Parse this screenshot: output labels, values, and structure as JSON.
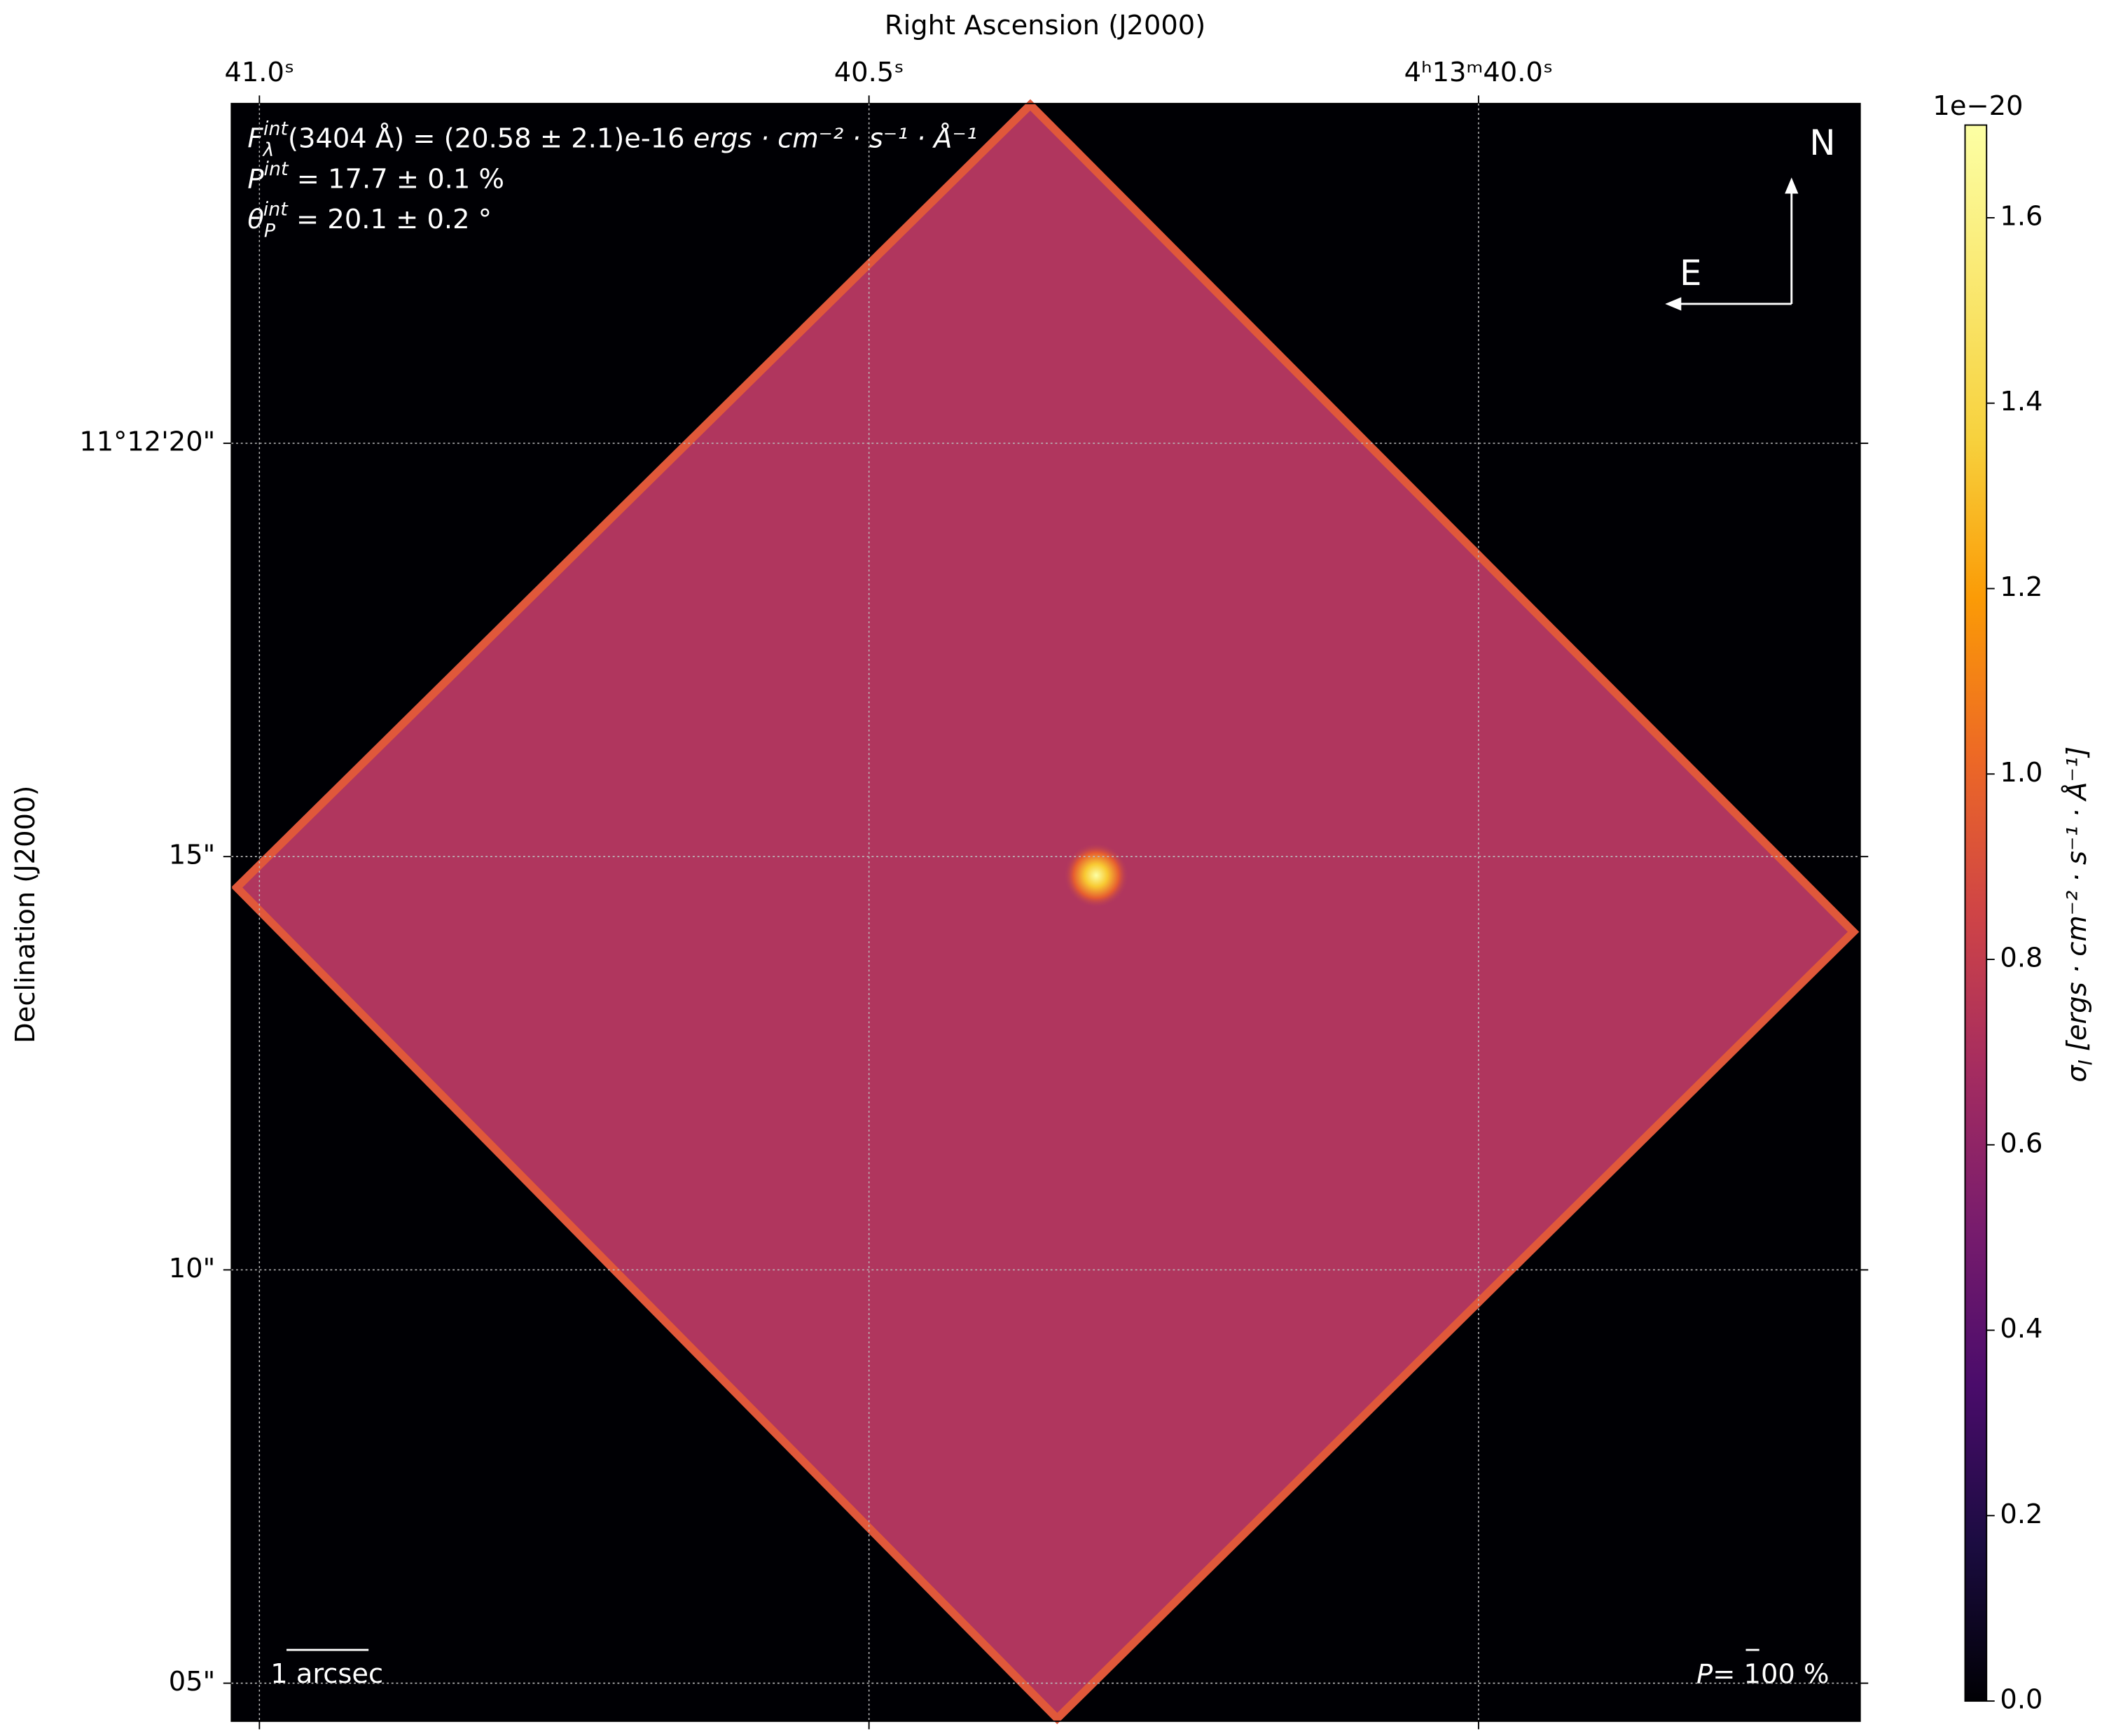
{
  "chart_data": {
    "type": "image",
    "title": "Right Ascension (J2000)",
    "ylabel": "Declination (J2000)",
    "xlim": [
      41.023,
      39.687
    ],
    "xticks": [
      {
        "value": 41.0,
        "label": "41.0ˢ"
      },
      {
        "value": 40.5,
        "label": "40.5ˢ"
      },
      {
        "value": 40.0,
        "label": "4ʰ13ᵐ40.0ˢ"
      }
    ],
    "ylim": [
      4.54,
      24.11
    ],
    "yticks": [
      {
        "value": 20,
        "label": "11°12'20\""
      },
      {
        "value": 15,
        "label": "15\""
      },
      {
        "value": 10,
        "label": "10\""
      },
      {
        "value": 5,
        "label": "05\""
      }
    ],
    "grid": true,
    "annotations": [
      {
        "symbol": "F",
        "sub": "λ",
        "sup": "int",
        "text": "(3404 Å) = (20.58 ± 2.1)e-16 ",
        "units": "ergs · cm⁻² · s⁻¹ · Å⁻¹"
      },
      {
        "symbol": "P",
        "sup": "int",
        "text": " = 17.7 ± 0.1 %"
      },
      {
        "symbol": "θ",
        "sub": "P",
        "sup": "int",
        "text": " = 20.1 ± 0.2 °"
      }
    ],
    "compass": {
      "north": "N",
      "east": "E"
    },
    "scale_bar": "1 arcsec",
    "pol_scale": {
      "symbol": "P",
      "text": "= 100 %"
    },
    "colorbar": {
      "label_symbol": "σ",
      "label_sub": "I",
      "label_units": " [ergs · cm⁻² · s⁻¹ · Å⁻¹]",
      "offset": "1e−20",
      "clim": [
        0,
        1.7
      ],
      "ticks": [
        {
          "value": 0,
          "label": "0.0"
        },
        0.2,
        0.4,
        0.6,
        0.8,
        {
          "value": 1,
          "label": "1.0"
        },
        1.2,
        1.4,
        1.6
      ]
    }
  }
}
